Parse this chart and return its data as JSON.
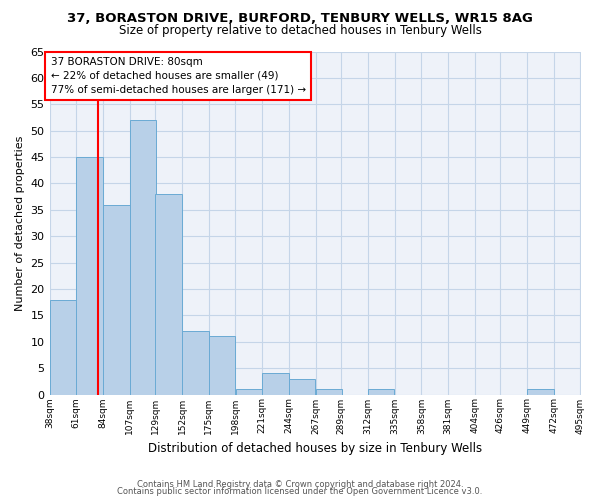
{
  "title1": "37, BORASTON DRIVE, BURFORD, TENBURY WELLS, WR15 8AG",
  "title2": "Size of property relative to detached houses in Tenbury Wells",
  "xlabel": "Distribution of detached houses by size in Tenbury Wells",
  "ylabel": "Number of detached properties",
  "bins": [
    38,
    61,
    84,
    107,
    129,
    152,
    175,
    198,
    221,
    244,
    267,
    289,
    312,
    335,
    358,
    381,
    404,
    426,
    449,
    472,
    495
  ],
  "counts": [
    18,
    45,
    36,
    52,
    38,
    12,
    11,
    1,
    4,
    3,
    1,
    0,
    1,
    0,
    0,
    0,
    0,
    0,
    1,
    0
  ],
  "bar_color": "#b8d0e8",
  "bar_edge_color": "#6aaad4",
  "vline_x": 80,
  "vline_color": "red",
  "annotation_line1": "37 BORASTON DRIVE: 80sqm",
  "annotation_line2": "← 22% of detached houses are smaller (49)",
  "annotation_line3": "77% of semi-detached houses are larger (171) →",
  "annotation_box_color": "white",
  "annotation_box_edge": "red",
  "ylim": [
    0,
    65
  ],
  "yticks": [
    0,
    5,
    10,
    15,
    20,
    25,
    30,
    35,
    40,
    45,
    50,
    55,
    60,
    65
  ],
  "tick_labels": [
    "38sqm",
    "61sqm",
    "84sqm",
    "107sqm",
    "129sqm",
    "152sqm",
    "175sqm",
    "198sqm",
    "221sqm",
    "244sqm",
    "267sqm",
    "289sqm",
    "312sqm",
    "335sqm",
    "358sqm",
    "381sqm",
    "404sqm",
    "426sqm",
    "449sqm",
    "472sqm",
    "495sqm"
  ],
  "footer1": "Contains HM Land Registry data © Crown copyright and database right 2024.",
  "footer2": "Contains public sector information licensed under the Open Government Licence v3.0.",
  "bg_color": "#eef2f9",
  "grid_color": "#c5d5e8",
  "title1_fontsize": 9.5,
  "title2_fontsize": 8.5,
  "ylabel_fontsize": 8.0,
  "xlabel_fontsize": 8.5,
  "ytick_fontsize": 8.0,
  "xtick_fontsize": 6.5,
  "footer_fontsize": 6.0,
  "annot_fontsize": 7.5
}
